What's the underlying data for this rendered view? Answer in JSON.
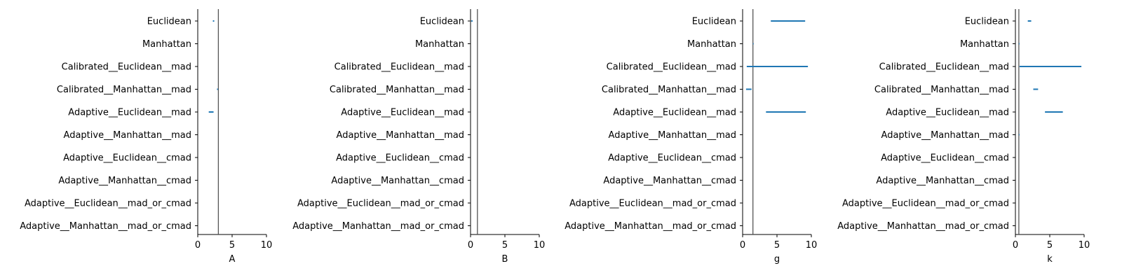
{
  "chart_data": [
    {
      "type": "interval",
      "xlabel": "A",
      "xlim": [
        0,
        10
      ],
      "xticks": [
        0,
        5,
        10
      ],
      "reference_line": 3.0,
      "categories": [
        "Euclidean",
        "Manhattan",
        "Calibrated__Euclidean__mad",
        "Calibrated__Manhattan__mad",
        "Adaptive__Euclidean__mad",
        "Adaptive__Manhattan__mad",
        "Adaptive__Euclidean__cmad",
        "Adaptive__Manhattan__cmad",
        "Adaptive__Euclidean__mad_or_cmad",
        "Adaptive__Manhattan__mad_or_cmad"
      ],
      "intervals": [
        [
          2.2,
          2.4
        ],
        null,
        null,
        [
          2.8,
          2.95
        ],
        [
          1.6,
          2.3
        ],
        null,
        null,
        null,
        null,
        null
      ]
    },
    {
      "type": "interval",
      "xlabel": "B",
      "xlim": [
        0,
        10
      ],
      "xticks": [
        0,
        5,
        10
      ],
      "reference_line": 1.0,
      "categories": [
        "Euclidean",
        "Manhattan",
        "Calibrated__Euclidean__mad",
        "Calibrated__Manhattan__mad",
        "Adaptive__Euclidean__mad",
        "Adaptive__Manhattan__mad",
        "Adaptive__Euclidean__cmad",
        "Adaptive__Manhattan__cmad",
        "Adaptive__Euclidean__mad_or_cmad",
        "Adaptive__Manhattan__mad_or_cmad"
      ],
      "intervals": [
        [
          0.1,
          0.3
        ],
        null,
        null,
        null,
        null,
        null,
        null,
        null,
        null,
        null
      ]
    },
    {
      "type": "interval",
      "xlabel": "g",
      "xlim": [
        0,
        10
      ],
      "xticks": [
        0,
        5,
        10
      ],
      "reference_line": 1.5,
      "categories": [
        "Euclidean",
        "Manhattan",
        "Calibrated__Euclidean__mad",
        "Calibrated__Manhattan__mad",
        "Adaptive__Euclidean__mad",
        "Adaptive__Manhattan__mad",
        "Adaptive__Euclidean__cmad",
        "Adaptive__Manhattan__cmad",
        "Adaptive__Euclidean__mad_or_cmad",
        "Adaptive__Manhattan__mad_or_cmad"
      ],
      "intervals": [
        [
          4.1,
          9.1
        ],
        [
          1.5,
          1.6
        ],
        [
          0.6,
          9.5
        ],
        [
          0.5,
          1.3
        ],
        [
          3.4,
          9.2
        ],
        null,
        null,
        null,
        null,
        null
      ]
    },
    {
      "type": "interval",
      "xlabel": "k",
      "xlim": [
        0,
        10
      ],
      "xticks": [
        0,
        5,
        10
      ],
      "reference_line": 0.5,
      "categories": [
        "Euclidean",
        "Manhattan",
        "Calibrated__Euclidean__mad",
        "Calibrated__Manhattan__mad",
        "Adaptive__Euclidean__mad",
        "Adaptive__Manhattan__mad",
        "Adaptive__Euclidean__cmad",
        "Adaptive__Manhattan__cmad",
        "Adaptive__Euclidean__mad_or_cmad",
        "Adaptive__Manhattan__mad_or_cmad"
      ],
      "intervals": [
        [
          1.8,
          2.3
        ],
        [
          0.5,
          0.6
        ],
        [
          0.6,
          9.6
        ],
        [
          2.6,
          3.3
        ],
        [
          4.3,
          6.9
        ],
        [
          0.5,
          0.6
        ],
        null,
        null,
        null,
        null
      ]
    }
  ],
  "colors": {
    "interval": "#1f77b4",
    "reference_line": "#555555",
    "axis": "#000000"
  }
}
